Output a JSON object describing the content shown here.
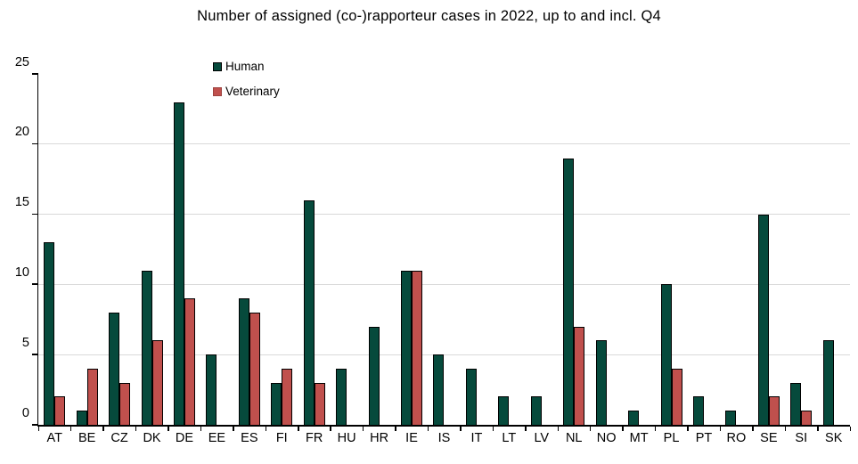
{
  "chart_data": {
    "type": "bar",
    "title": "Number of assigned (co-)rapporteur cases in 2022, up to and incl. Q4",
    "categories": [
      "AT",
      "BE",
      "CZ",
      "DK",
      "DE",
      "EE",
      "ES",
      "FI",
      "FR",
      "HU",
      "HR",
      "IE",
      "IS",
      "IT",
      "LT",
      "LV",
      "NL",
      "NO",
      "MT",
      "PL",
      "PT",
      "RO",
      "SE",
      "SI",
      "SK"
    ],
    "series": [
      {
        "name": "Human",
        "color": "#064a3c",
        "values": [
          13,
          1,
          8,
          11,
          23,
          5,
          9,
          3,
          16,
          4,
          7,
          11,
          5,
          4,
          2,
          2,
          19,
          6,
          1,
          10,
          2,
          1,
          15,
          3,
          6
        ]
      },
      {
        "name": "Veterinary",
        "color": "#c0504d",
        "values": [
          2,
          4,
          3,
          6,
          9,
          0,
          8,
          4,
          3,
          0,
          0,
          11,
          0,
          0,
          0,
          0,
          7,
          0,
          0,
          4,
          0,
          0,
          2,
          1,
          0
        ]
      }
    ],
    "xlabel": "",
    "ylabel": "",
    "ylim": [
      0,
      25
    ],
    "yticks": [
      0,
      5,
      10,
      15,
      20,
      25
    ],
    "gridlines_at": [
      5,
      10,
      15,
      20
    ],
    "grid": "horizontal",
    "legend_position": "inside-top-left",
    "colors": {
      "gridline": "#d9d9d9",
      "axis": "#000000",
      "bar_border": "#000000",
      "text": "#000000",
      "background": "#ffffff"
    }
  }
}
